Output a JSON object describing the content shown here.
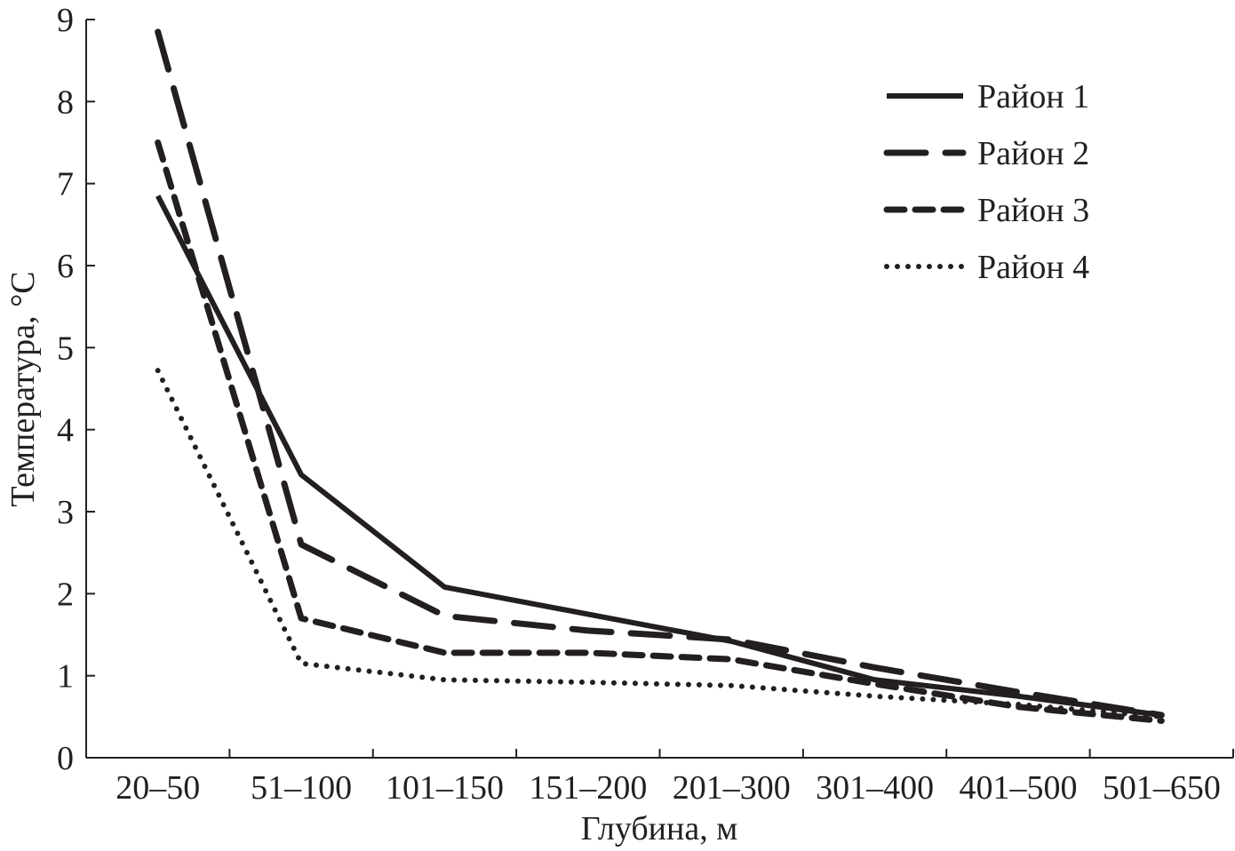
{
  "chart_data": {
    "type": "line",
    "title": "",
    "xlabel": "Глубина, м",
    "ylabel": "Температура, °С",
    "categories": [
      "20–50",
      "51–100",
      "101–150",
      "151–200",
      "201–300",
      "301–400",
      "401–500",
      "501–650"
    ],
    "ylim": [
      0,
      9
    ],
    "yticks": [
      "0",
      "1",
      "2",
      "3",
      "4",
      "5",
      "6",
      "7",
      "8",
      "9"
    ],
    "grid": false,
    "legend_position": "top-right",
    "series": [
      {
        "name": "Район 1",
        "style": "solid",
        "values": [
          6.85,
          3.45,
          2.08,
          1.75,
          1.42,
          0.95,
          0.75,
          0.52
        ]
      },
      {
        "name": "Район 2",
        "style": "long-dash",
        "values": [
          8.85,
          2.6,
          1.73,
          1.55,
          1.44,
          1.1,
          0.8,
          0.52
        ]
      },
      {
        "name": "Район 3",
        "style": "dash",
        "values": [
          7.5,
          1.7,
          1.28,
          1.28,
          1.2,
          0.9,
          0.62,
          0.45
        ]
      },
      {
        "name": "Район 4",
        "style": "dotted",
        "values": [
          4.72,
          1.15,
          0.95,
          0.92,
          0.88,
          0.75,
          0.65,
          0.5
        ]
      }
    ],
    "line_color": "#231f20"
  }
}
